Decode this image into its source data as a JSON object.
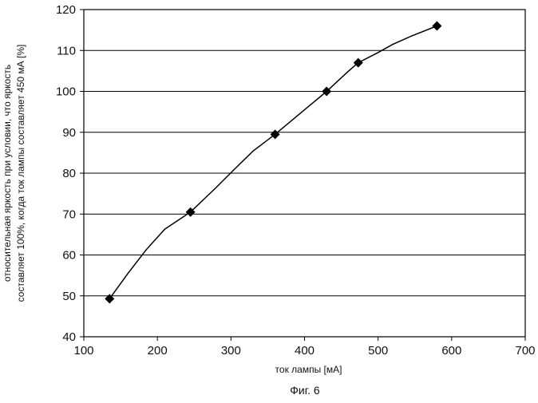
{
  "chart_data": {
    "type": "line",
    "title": "",
    "xlabel": "ток лампы [мА]",
    "ylabel_lines": [
      "относительная яркость при условии, что яркость",
      "составляет 100%, когда ток лампы составляет 450 мА [%]"
    ],
    "xlim": [
      100,
      700
    ],
    "ylim": [
      40,
      120
    ],
    "x_ticks": [
      100,
      200,
      300,
      400,
      500,
      600,
      700
    ],
    "y_ticks": [
      40,
      50,
      60,
      70,
      80,
      90,
      100,
      110,
      120
    ],
    "grid": "horizontal",
    "legend": "none",
    "markers": {
      "shape": "diamond",
      "x": [
        135,
        245,
        360,
        430,
        473,
        580
      ],
      "y": [
        49.3,
        70.5,
        89.5,
        100,
        107,
        116
      ]
    },
    "line": {
      "x": [
        135,
        160,
        185,
        210,
        245,
        280,
        305,
        330,
        360,
        380,
        400,
        430,
        445,
        460,
        473,
        500,
        520,
        545,
        580
      ],
      "y": [
        49.3,
        55.5,
        61.3,
        66.3,
        70.5,
        76.5,
        81,
        85.4,
        89.5,
        92.5,
        95.5,
        100,
        102.5,
        105,
        107,
        109.5,
        111.5,
        113.5,
        116
      ]
    },
    "line_color": "#000000",
    "marker_color": "#000000"
  },
  "caption": "Фиг. 6"
}
